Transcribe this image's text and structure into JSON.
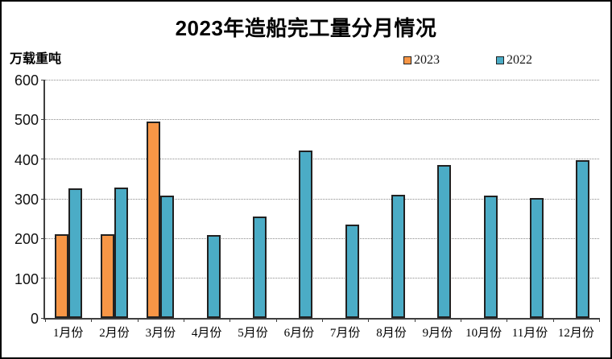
{
  "title": "2023年造船完工量分月情况",
  "unit_label": "万载重吨",
  "legend": [
    {
      "label": "2023",
      "color": "#F79646"
    },
    {
      "label": "2022",
      "color": "#4BACC6"
    }
  ],
  "colors": {
    "bar_border": "#212121",
    "axis": "#3f3f3f",
    "gridline": "#8c8c8c",
    "background": "#ffffff",
    "frame_border": "#000000"
  },
  "chart_data": {
    "type": "bar",
    "title": "2023年造船完工量分月情况",
    "xlabel": "",
    "ylabel": "万载重吨",
    "categories": [
      "1月份",
      "2月份",
      "3月份",
      "4月份",
      "5月份",
      "6月份",
      "7月份",
      "8月份",
      "9月份",
      "10月份",
      "11月份",
      "12月份"
    ],
    "series": [
      {
        "name": "2023",
        "color": "#F79646",
        "values": [
          211,
          211,
          495,
          null,
          null,
          null,
          null,
          null,
          null,
          null,
          null,
          null
        ]
      },
      {
        "name": "2022",
        "color": "#4BACC6",
        "values": [
          326,
          328,
          308,
          208,
          256,
          422,
          235,
          310,
          386,
          308,
          303,
          397
        ]
      }
    ],
    "ylim": [
      0,
      600
    ],
    "yticks": [
      0,
      100,
      200,
      300,
      400,
      500,
      600
    ],
    "grid": "horizontal-dotted",
    "legend_position": "top-right"
  }
}
